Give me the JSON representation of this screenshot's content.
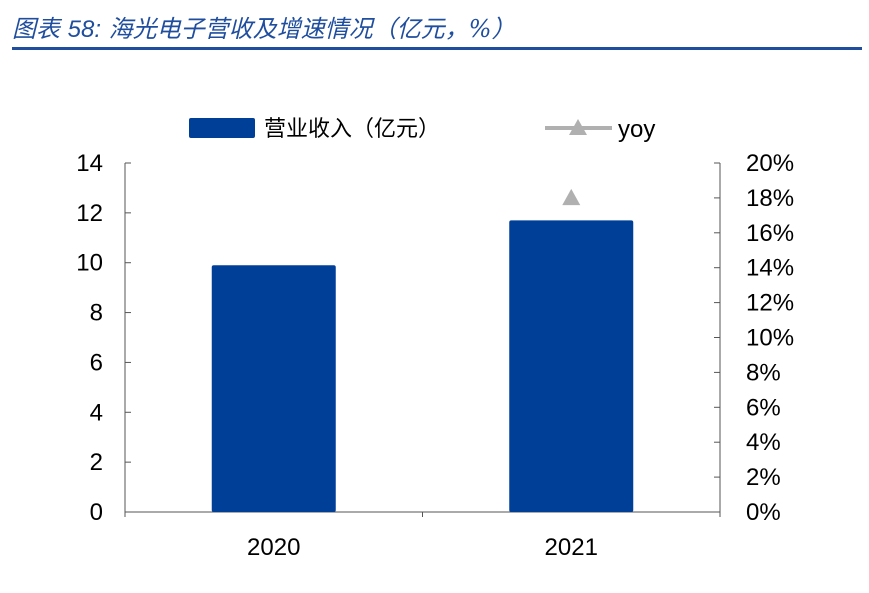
{
  "caption": {
    "prefix": "图表",
    "number": "58:",
    "title": "海光电子营收及增速情况（亿元，%）"
  },
  "colors": {
    "bar": "#003F98",
    "yoy_marker": "#B0B0B0",
    "caption": "#1F4E9E"
  },
  "chart_data": {
    "type": "bar",
    "categories": [
      "2020",
      "2021"
    ],
    "series": [
      {
        "name": "营业收入（亿元）",
        "type": "bar",
        "axis": "left",
        "values": [
          9.9,
          11.7
        ]
      },
      {
        "name": "yoy",
        "type": "line",
        "marker": "triangle",
        "axis": "right",
        "values": [
          null,
          18.0
        ]
      }
    ],
    "y_left": {
      "range": [
        0,
        14
      ],
      "ticks": [
        "0",
        "2",
        "4",
        "6",
        "8",
        "10",
        "12",
        "14"
      ]
    },
    "y_right": {
      "range": [
        0,
        20
      ],
      "ticks": [
        "0%",
        "2%",
        "4%",
        "6%",
        "8%",
        "10%",
        "12%",
        "14%",
        "16%",
        "18%",
        "20%"
      ]
    },
    "grid": false,
    "legend_position": "top"
  }
}
